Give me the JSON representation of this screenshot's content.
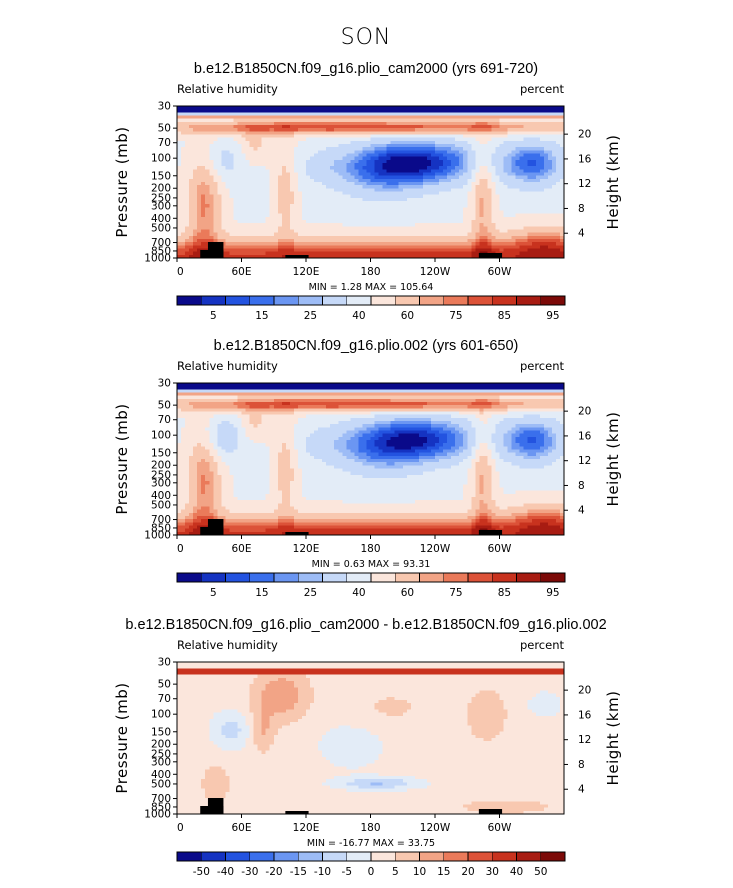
{
  "season": "SON",
  "chart_data": [
    {
      "type": "heatmap",
      "title": "b.e12.B1850CN.f09_g16.plio_cam2000 (yrs 691-720)",
      "subtitle_left": "Relative humidity",
      "subtitle_right": "percent",
      "ylabel": "Pressure (mb)",
      "ylabel_right": "Height (km)",
      "x_ticks": [
        "0",
        "60E",
        "120E",
        "180",
        "120W",
        "60W"
      ],
      "y_ticks": [
        "30",
        "50",
        "70",
        "100",
        "150",
        "200",
        "250",
        "300",
        "400",
        "500",
        "700",
        "850",
        "1000"
      ],
      "y_right_ticks": [
        "20",
        "16",
        "12",
        "8",
        "4"
      ],
      "y_scale": "log",
      "stats": {
        "min": "1.28",
        "max": "105.64",
        "min_label": "MIN =",
        "max_label": "MAX ="
      },
      "colorbar_labels": [
        "5",
        "15",
        "25",
        "40",
        "60",
        "75",
        "85",
        "95"
      ],
      "colorbar_colors": [
        "#0a0a8a",
        "#1533c2",
        "#2353e0",
        "#3a6fec",
        "#6b96f2",
        "#9dbcf6",
        "#c6d9f8",
        "#e3ecf7",
        "#fbe6dc",
        "#f8c8b0",
        "#f2a486",
        "#ea7a5a",
        "#dc5238",
        "#c8321e",
        "#a81c12",
        "#7c0a08"
      ],
      "scheme": "full"
    },
    {
      "type": "heatmap",
      "title": "b.e12.B1850CN.f09_g16.plio.002 (yrs 601-650)",
      "subtitle_left": "Relative humidity",
      "subtitle_right": "percent",
      "ylabel": "Pressure (mb)",
      "ylabel_right": "Height (km)",
      "x_ticks": [
        "0",
        "60E",
        "120E",
        "180",
        "120W",
        "60W"
      ],
      "y_ticks": [
        "30",
        "50",
        "70",
        "100",
        "150",
        "200",
        "250",
        "300",
        "400",
        "500",
        "700",
        "850",
        "1000"
      ],
      "y_right_ticks": [
        "20",
        "16",
        "12",
        "8",
        "4"
      ],
      "y_scale": "log",
      "stats": {
        "min": "0.63",
        "max": "93.31",
        "min_label": "MIN =",
        "max_label": "MAX ="
      },
      "colorbar_labels": [
        "5",
        "15",
        "25",
        "40",
        "60",
        "75",
        "85",
        "95"
      ],
      "colorbar_colors": [
        "#0a0a8a",
        "#1533c2",
        "#2353e0",
        "#3a6fec",
        "#6b96f2",
        "#9dbcf6",
        "#c6d9f8",
        "#e3ecf7",
        "#fbe6dc",
        "#f8c8b0",
        "#f2a486",
        "#ea7a5a",
        "#dc5238",
        "#c8321e",
        "#a81c12",
        "#7c0a08"
      ],
      "scheme": "full"
    },
    {
      "type": "heatmap",
      "title": "b.e12.B1850CN.f09_g16.plio_cam2000 - b.e12.B1850CN.f09_g16.plio.002",
      "subtitle_left": "Relative humidity",
      "subtitle_right": "percent",
      "ylabel": "Pressure (mb)",
      "ylabel_right": "Height (km)",
      "x_ticks": [
        "0",
        "60E",
        "120E",
        "180",
        "120W",
        "60W"
      ],
      "y_ticks": [
        "30",
        "50",
        "70",
        "100",
        "150",
        "200",
        "250",
        "300",
        "400",
        "500",
        "700",
        "850",
        "1000"
      ],
      "y_right_ticks": [
        "20",
        "16",
        "12",
        "8",
        "4"
      ],
      "y_scale": "log",
      "stats": {
        "min": "-16.77",
        "max": "33.75",
        "min_label": "MIN =",
        "max_label": "MAX ="
      },
      "colorbar_labels": [
        "-50",
        "-40",
        "-30",
        "-20",
        "-15",
        "-10",
        "-5",
        "0",
        "5",
        "10",
        "15",
        "20",
        "30",
        "40",
        "50"
      ],
      "colorbar_colors": [
        "#0a0a8a",
        "#1533c2",
        "#2353e0",
        "#3a6fec",
        "#6b96f2",
        "#9dbcf6",
        "#c6d9f8",
        "#e3ecf7",
        "#fbe6dc",
        "#f8c8b0",
        "#f2a486",
        "#ea7a5a",
        "#dc5238",
        "#c8321e",
        "#a81c12",
        "#7c0a08"
      ],
      "scheme": "diff"
    }
  ]
}
